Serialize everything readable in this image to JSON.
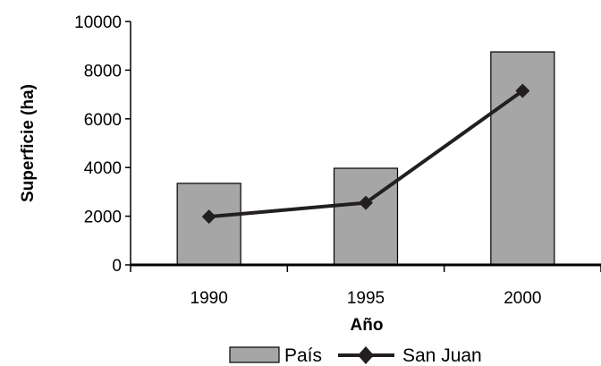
{
  "chart_data": {
    "type": "bar",
    "categories": [
      "1990",
      "1995",
      "2000"
    ],
    "series": [
      {
        "name": "País",
        "type": "bar",
        "values": [
          3350,
          3970,
          8750
        ],
        "color": "#a6a6a6"
      },
      {
        "name": "San Juan",
        "type": "line",
        "values": [
          1980,
          2550,
          7150
        ],
        "color": "#231f20"
      }
    ],
    "xlabel": "Año",
    "ylabel": "Superficie (ha)",
    "ylim": [
      0,
      10000
    ],
    "yticks": [
      0,
      2000,
      4000,
      6000,
      8000,
      10000
    ],
    "legend": "bottom",
    "grid": false
  }
}
